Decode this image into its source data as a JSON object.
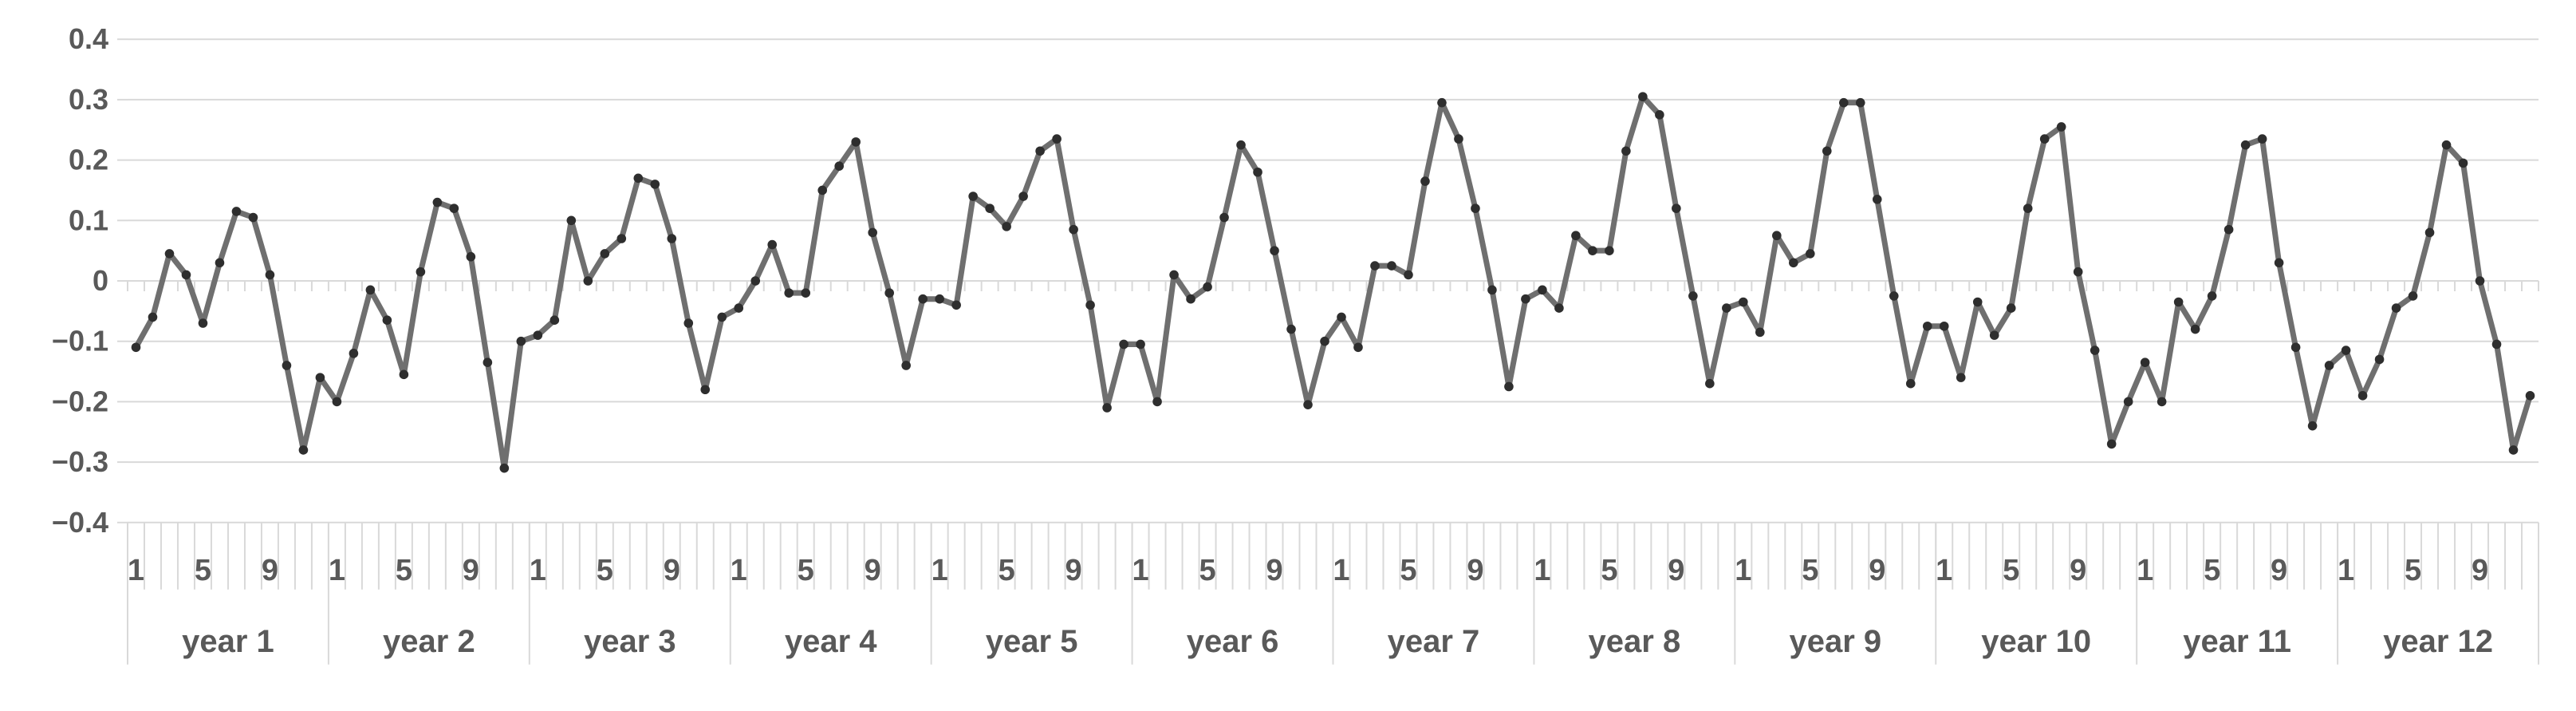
{
  "chart_data": {
    "type": "line",
    "title": "",
    "legend": "none",
    "grid": true,
    "marker": "circle",
    "y_axis": {
      "min": -0.4,
      "max": 0.4,
      "step": 0.1,
      "labels": [
        "0.4",
        "0.3",
        "0.2",
        "0.1",
        "0",
        "−0.1",
        "−0.2",
        "−0.3",
        "−0.4"
      ]
    },
    "x_axis": {
      "months_per_year": 12,
      "month_labels_shown": [
        "1",
        "5",
        "9"
      ],
      "month_label_positions": [
        1,
        5,
        9
      ],
      "years": [
        "year 1",
        "year 2",
        "year 3",
        "year 4",
        "year 5",
        "year 6",
        "year 7",
        "year 8",
        "year 9",
        "year 10",
        "year 11",
        "year 12"
      ]
    },
    "series": [
      {
        "name": "",
        "values": [
          -0.11,
          -0.06,
          0.045,
          0.01,
          -0.07,
          0.03,
          0.115,
          0.105,
          0.01,
          -0.14,
          -0.28,
          -0.16,
          -0.2,
          -0.12,
          -0.015,
          -0.065,
          -0.155,
          0.015,
          0.13,
          0.12,
          0.04,
          -0.135,
          -0.31,
          -0.1,
          -0.09,
          -0.065,
          0.1,
          0.0,
          0.045,
          0.07,
          0.17,
          0.16,
          0.07,
          -0.07,
          -0.18,
          -0.06,
          -0.045,
          0.0,
          0.06,
          -0.02,
          -0.02,
          0.15,
          0.19,
          0.23,
          0.08,
          -0.02,
          -0.14,
          -0.03,
          -0.03,
          -0.04,
          0.14,
          0.12,
          0.09,
          0.14,
          0.215,
          0.235,
          0.085,
          -0.04,
          -0.21,
          -0.105,
          -0.105,
          -0.2,
          0.01,
          -0.03,
          -0.01,
          0.105,
          0.225,
          0.18,
          0.05,
          -0.08,
          -0.205,
          -0.1,
          -0.06,
          -0.11,
          0.025,
          0.025,
          0.01,
          0.165,
          0.295,
          0.235,
          0.12,
          -0.015,
          -0.175,
          -0.03,
          -0.015,
          -0.045,
          0.075,
          0.05,
          0.05,
          0.215,
          0.305,
          0.275,
          0.12,
          -0.025,
          -0.17,
          -0.045,
          -0.035,
          -0.085,
          0.075,
          0.03,
          0.045,
          0.215,
          0.295,
          0.295,
          0.135,
          -0.025,
          -0.17,
          -0.075,
          -0.075,
          -0.16,
          -0.035,
          -0.09,
          -0.045,
          0.12,
          0.235,
          0.255,
          0.015,
          -0.115,
          -0.27,
          -0.2,
          -0.135,
          -0.2,
          -0.035,
          -0.08,
          -0.025,
          0.085,
          0.225,
          0.235,
          0.03,
          -0.11,
          -0.24,
          -0.14,
          -0.115,
          -0.19,
          -0.13,
          -0.045,
          -0.025,
          0.08,
          0.225,
          0.195,
          0.0,
          -0.105,
          -0.28,
          -0.19
        ]
      }
    ]
  },
  "colors": {
    "background": "#ffffff",
    "gridline": "#d9d9d9",
    "axis_tick": "#d9d9d9",
    "axis_text": "#595959",
    "series_line": "#6f6f6f",
    "marker_fill": "#2e2e2e"
  }
}
